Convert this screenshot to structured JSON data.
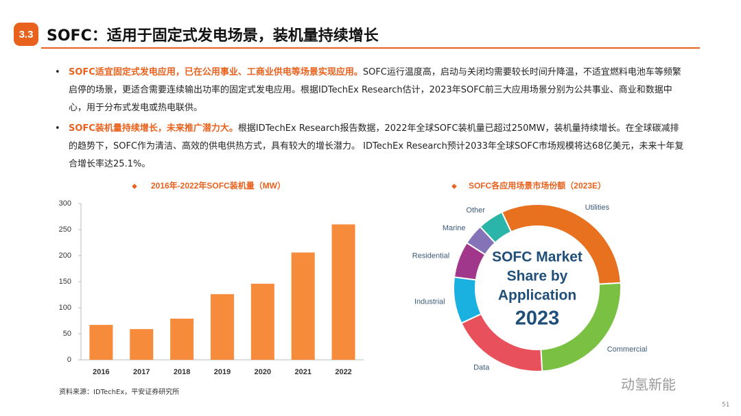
{
  "header": {
    "section": "3.3",
    "title": "SOFC：适用于固定式发电场景，装机量持续增长"
  },
  "bullets": [
    {
      "lead": "SOFC适宜固定式发电应用，已在公用事业、工商业供电等场景实现应用。",
      "text": "SOFC运行温度高，启动与关闭均需要较长时间升降温，不适宜燃料电池车等频繁启停的场景，更适合需要连续输出功率的固定式发电应用。根据IDTechEx Research估计，2023年SOFC前三大应用场景分别为公共事业、商业和数据中心，用于分布式发电或热电联供。"
    },
    {
      "lead": "SOFC装机量持续增长，未来推广潜力大。",
      "text": "根据IDTechEx Research报告数据，2022年全球SOFC装机量已超过250MW，装机量持续增长。在全球碳减排的趋势下，SOFC作为清洁、高效的供电供热方式，具有较大的增长潜力。 IDTechEx Research预计2033年全球SOFC市场规模将达68亿美元，未来十年复合增长率达25.1%。"
    }
  ],
  "chart_data": [
    {
      "type": "bar",
      "title": "2016年-2022年SOFC装机量（MW）",
      "categories": [
        "2016",
        "2017",
        "2018",
        "2019",
        "2020",
        "2021",
        "2022"
      ],
      "values": [
        67,
        59,
        79,
        126,
        146,
        206,
        260
      ],
      "color": "#f68b3c",
      "ylim": [
        0,
        300
      ],
      "yticks": [
        0,
        50,
        100,
        150,
        200,
        250,
        300
      ],
      "grid": false
    },
    {
      "type": "pie",
      "title": "SOFC各应用场景市场份额（2023E）",
      "center_text": [
        "SOFC Market",
        "Share by",
        "Application",
        "2023"
      ],
      "categories": [
        "Utilities",
        "Commercial",
        "Data",
        "Industrial",
        "Residential",
        "Marine",
        "Other"
      ],
      "values": [
        31,
        25,
        19,
        9,
        7,
        4,
        5
      ],
      "colors": [
        "#e8711f",
        "#7ac143",
        "#e8505b",
        "#1ab0e0",
        "#a1378b",
        "#8573b8",
        "#2bb5a8"
      ]
    }
  ],
  "source": "资料来源：IDTechEx，平安证券研究所",
  "watermark": "动氢新能",
  "page_number": "51"
}
